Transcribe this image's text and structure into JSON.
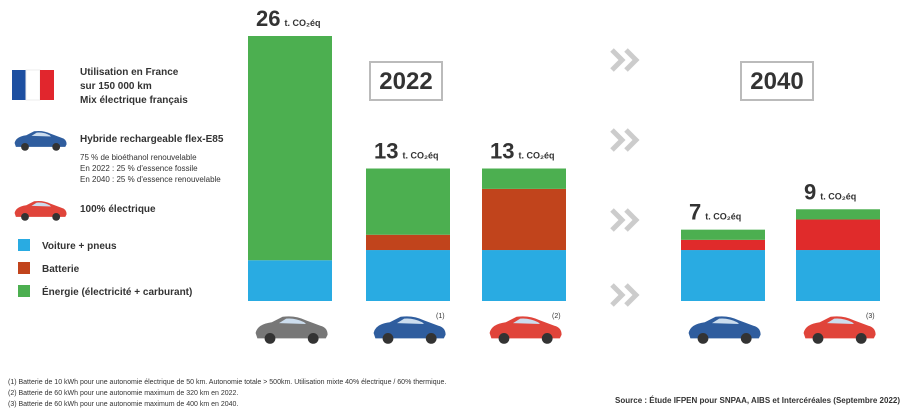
{
  "chart_data": {
    "type": "stacked_bar",
    "year_labels": [
      "2022",
      "2040"
    ],
    "series": [
      {
        "name": "Voiture + pneus",
        "color": "#29abe2",
        "values": [
          4,
          5,
          5,
          5,
          5
        ]
      },
      {
        "name": "Batterie",
        "color": "#c1441c",
        "colors": [
          "#c1441c",
          "#c1441c",
          "#c1441c",
          "#e02b2b",
          "#e02b2b"
        ],
        "values": [
          0,
          1.5,
          6,
          1,
          3
        ]
      },
      {
        "name": "Énergie (électricité + carburant)",
        "color": "#4caf50",
        "values": [
          22,
          6.5,
          2,
          1,
          1
        ]
      }
    ],
    "totals": [
      26,
      13,
      13,
      7,
      9
    ],
    "total_unit": "t. CO₂éq",
    "bar_notes": [
      null,
      "(1)",
      "(2)",
      null,
      "(3)"
    ]
  },
  "vehicles": [
    {
      "lines": [
        "Utilisation en France",
        "sur 150 000 km",
        "Mix électrique français"
      ]
    },
    {
      "title": "Hybride rechargeable flex-E85",
      "lines": [
        "75 % de bioéthanol renouvelable",
        "En 2022 : 25 % d'essence fossile",
        "En 2040 : 25 % d'essence renouvelable"
      ]
    },
    {
      "title": "100% électrique"
    }
  ],
  "footnotes": [
    "(1) Batterie de 10 kWh pour une autonomie électrique de 50 km. Autonomie totale > 500km. Utilisation mixte 40% électrique / 60% thermique.",
    "(2) Batterie de 60 kWh pour une autonomie maximum de 320 km en 2022.",
    "(3) Batterie de 60 kWh pour une autonomie maximum de 400 km en 2040."
  ],
  "source": "Source : Étude IFPEN pour SNPAA, AIBS et Intercéréales (Septembre 2022)"
}
